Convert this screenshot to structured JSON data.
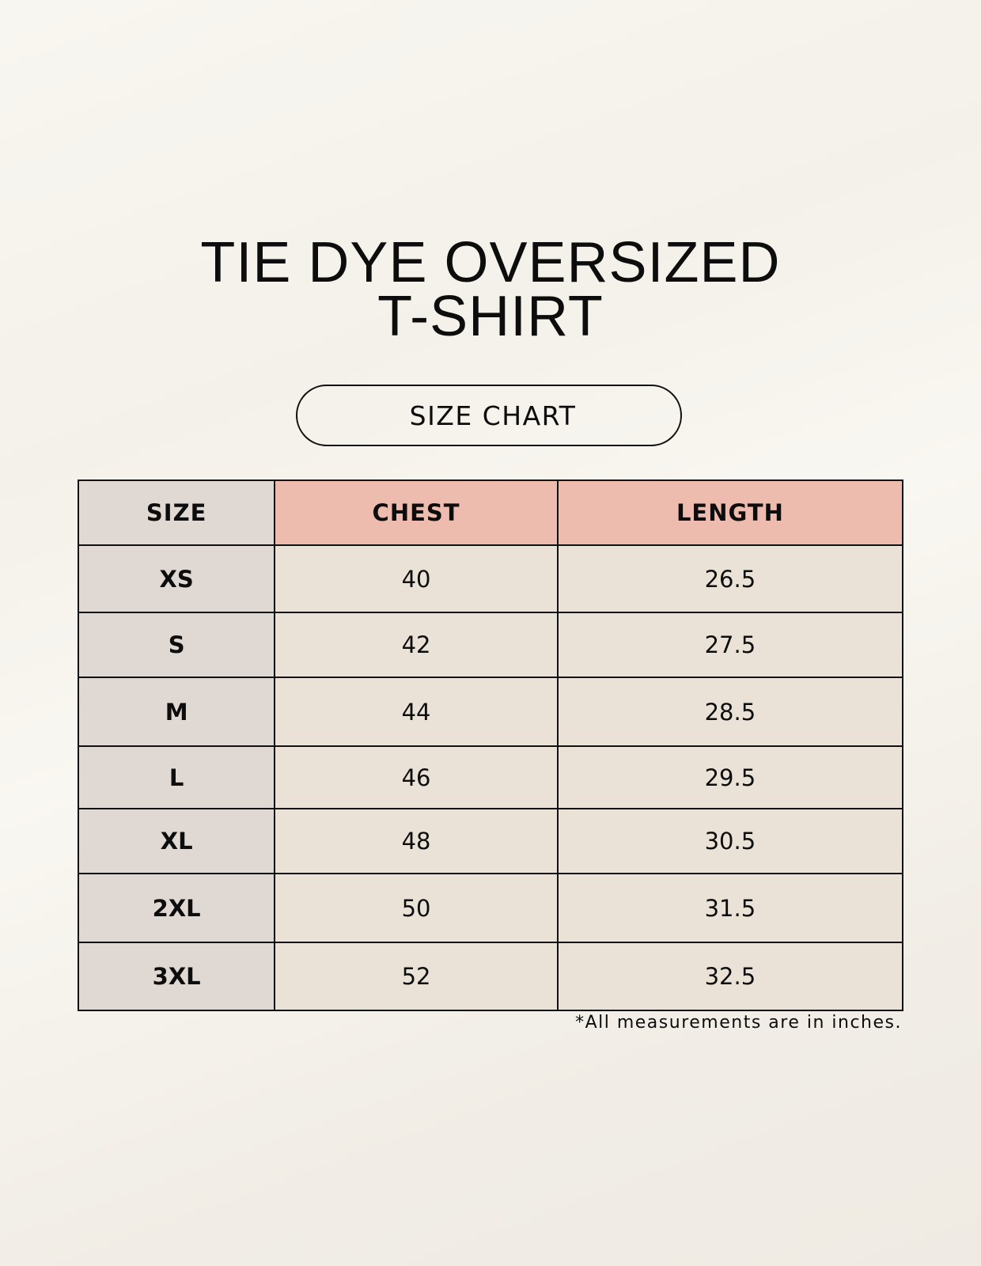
{
  "title": {
    "line1": "TIE DYE OVERSIZED",
    "line2": "T-SHIRT"
  },
  "badge": "SIZE CHART",
  "colors": {
    "size_column": "#e0d8d2",
    "header_measure": "#edbcae",
    "cells": "#eae2d7"
  },
  "table": {
    "headers": [
      "SIZE",
      "CHEST",
      "LENGTH"
    ],
    "rows": [
      {
        "size": "XS",
        "chest": "40",
        "length": "26.5"
      },
      {
        "size": "S",
        "chest": "42",
        "length": "27.5"
      },
      {
        "size": "M",
        "chest": "44",
        "length": "28.5"
      },
      {
        "size": "L",
        "chest": "46",
        "length": "29.5"
      },
      {
        "size": "XL",
        "chest": "48",
        "length": "30.5"
      },
      {
        "size": "2XL",
        "chest": "50",
        "length": "31.5"
      },
      {
        "size": "3XL",
        "chest": "52",
        "length": "32.5"
      }
    ]
  },
  "footnote": "*All measurements are in inches."
}
